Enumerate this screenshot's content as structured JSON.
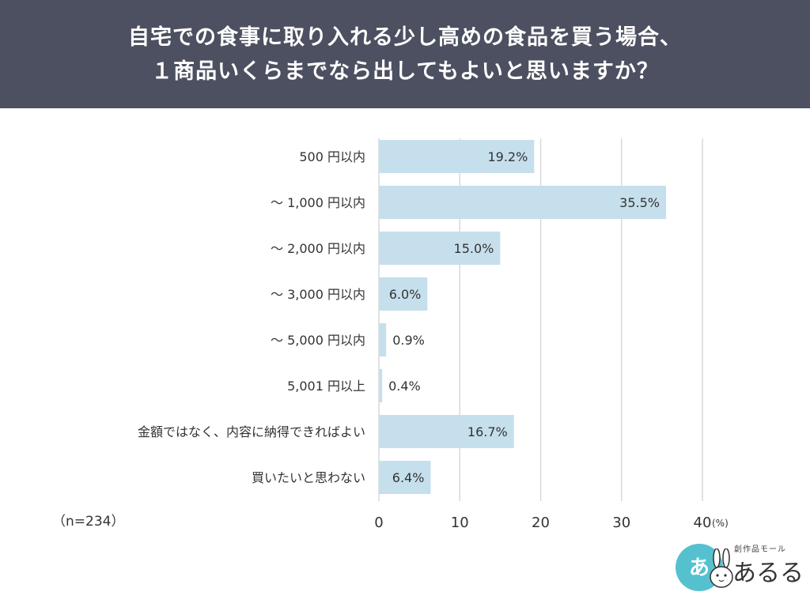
{
  "header": {
    "title_line1": "自宅での食事に取り入れる少し高めの食品を買う場合、",
    "title_line2": "１商品いくらまでなら出してもよいと思いますか？"
  },
  "sample_size": "（n=234）",
  "logo": {
    "badge": "あ",
    "subtitle": "創作品モール",
    "name": "あるる"
  },
  "colors": {
    "header_bg": "#4c5060",
    "bar": "#c6dfec",
    "grid": "#d9d9d9",
    "logo_accent": "#55c1cf"
  },
  "chart_data": {
    "type": "bar",
    "orientation": "horizontal",
    "title": "自宅での食事に取り入れる少し高めの食品を買う場合、１商品いくらまでなら出してもよいと思いますか？",
    "categories": [
      "500 円以内",
      "～ 1,000 円以内",
      "～ 2,000 円以内",
      "～ 3,000 円以内",
      "～ 5,000 円以内",
      "5,001 円以上",
      "金額ではなく、内容に納得できればよい",
      "買いたいと思わない"
    ],
    "values": [
      19.2,
      35.5,
      15.0,
      6.0,
      0.9,
      0.4,
      16.7,
      6.4
    ],
    "value_labels": [
      "19.2%",
      "35.5%",
      "15.0%",
      "6.0%",
      "0.9%",
      "0.4%",
      "16.7%",
      "6.4%"
    ],
    "xlim": [
      0,
      40
    ],
    "xticks": [
      0,
      10,
      20,
      30,
      40
    ],
    "xtick_labels": [
      "0",
      "10",
      "20",
      "30",
      "40"
    ],
    "unit_label": "(%)",
    "grid": true
  }
}
